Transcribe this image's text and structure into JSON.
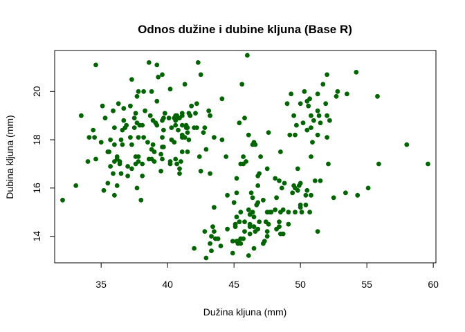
{
  "chart_data": {
    "type": "scatter",
    "title": "Odnos dužine i dubine kljuna (Base R)",
    "xlabel": "Dužina kljuna (mm)",
    "ylabel": "Dubina kljuna (mm)",
    "xlim": [
      31.5,
      60.2
    ],
    "ylim": [
      12.9,
      21.7
    ],
    "x_ticks": [
      35,
      40,
      45,
      50,
      55,
      60
    ],
    "y_ticks": [
      14,
      16,
      18,
      20
    ],
    "grid": false,
    "legend": "none",
    "point_color": "#006400",
    "points": [
      [
        32.1,
        15.5
      ],
      [
        33.1,
        16.1
      ],
      [
        33.5,
        19.0
      ],
      [
        34.0,
        17.1
      ],
      [
        34.1,
        18.1
      ],
      [
        34.4,
        18.4
      ],
      [
        34.5,
        18.1
      ],
      [
        34.6,
        21.1
      ],
      [
        34.6,
        17.2
      ],
      [
        35.0,
        17.9
      ],
      [
        35.1,
        19.4
      ],
      [
        35.2,
        15.9
      ],
      [
        35.3,
        18.9
      ],
      [
        35.5,
        16.2
      ],
      [
        35.5,
        17.5
      ],
      [
        35.6,
        17.5
      ],
      [
        35.7,
        16.9
      ],
      [
        35.7,
        18.0
      ],
      [
        35.9,
        16.6
      ],
      [
        35.9,
        19.2
      ],
      [
        36.0,
        15.7
      ],
      [
        36.0,
        17.1
      ],
      [
        36.0,
        17.8
      ],
      [
        36.0,
        18.5
      ],
      [
        36.2,
        16.1
      ],
      [
        36.2,
        17.2
      ],
      [
        36.2,
        17.3
      ],
      [
        36.3,
        19.5
      ],
      [
        36.4,
        17.0
      ],
      [
        36.4,
        17.1
      ],
      [
        36.5,
        16.6
      ],
      [
        36.5,
        18.0
      ],
      [
        36.6,
        17.8
      ],
      [
        36.6,
        18.4
      ],
      [
        36.7,
        18.8
      ],
      [
        36.7,
        19.3
      ],
      [
        36.8,
        18.5
      ],
      [
        36.9,
        18.6
      ],
      [
        37.0,
        16.5
      ],
      [
        37.0,
        16.9
      ],
      [
        37.2,
        18.1
      ],
      [
        37.2,
        19.4
      ],
      [
        37.3,
        16.8
      ],
      [
        37.3,
        17.8
      ],
      [
        37.3,
        20.5
      ],
      [
        37.5,
        18.5
      ],
      [
        37.5,
        18.9
      ],
      [
        37.6,
        17.0
      ],
      [
        37.6,
        17.3
      ],
      [
        37.6,
        19.1
      ],
      [
        37.7,
        16.0
      ],
      [
        37.7,
        18.7
      ],
      [
        37.7,
        19.8
      ],
      [
        37.8,
        17.1
      ],
      [
        37.8,
        17.3
      ],
      [
        37.8,
        18.1
      ],
      [
        37.8,
        20.0
      ],
      [
        37.9,
        18.6
      ],
      [
        38.0,
        15.5
      ],
      [
        38.1,
        16.5
      ],
      [
        38.1,
        17.0
      ],
      [
        38.1,
        18.6
      ],
      [
        38.2,
        18.1
      ],
      [
        38.2,
        20.0
      ],
      [
        38.3,
        19.2
      ],
      [
        38.5,
        17.9
      ],
      [
        38.6,
        17.2
      ],
      [
        38.6,
        21.2
      ],
      [
        38.7,
        19.0
      ],
      [
        38.8,
        17.2
      ],
      [
        38.8,
        17.6
      ],
      [
        38.8,
        20.0
      ],
      [
        38.9,
        17.8
      ],
      [
        38.9,
        18.8
      ],
      [
        39.0,
        17.1
      ],
      [
        39.0,
        17.5
      ],
      [
        39.1,
        18.7
      ],
      [
        39.2,
        18.6
      ],
      [
        39.2,
        19.6
      ],
      [
        39.2,
        21.1
      ],
      [
        39.3,
        20.6
      ],
      [
        39.5,
        16.7
      ],
      [
        39.5,
        17.4
      ],
      [
        39.6,
        17.2
      ],
      [
        39.6,
        17.7
      ],
      [
        39.6,
        18.1
      ],
      [
        39.6,
        18.8
      ],
      [
        39.6,
        20.7
      ],
      [
        39.7,
        17.7
      ],
      [
        39.7,
        18.4
      ],
      [
        39.7,
        18.9
      ],
      [
        39.8,
        19.1
      ],
      [
        40.1,
        18.9
      ],
      [
        40.2,
        17.0
      ],
      [
        40.2,
        17.1
      ],
      [
        40.2,
        20.1
      ],
      [
        40.3,
        18.0
      ],
      [
        40.3,
        18.5
      ],
      [
        40.5,
        17.9
      ],
      [
        40.5,
        18.9
      ],
      [
        40.6,
        17.2
      ],
      [
        40.6,
        18.6
      ],
      [
        40.6,
        18.8
      ],
      [
        40.6,
        19.0
      ],
      [
        40.7,
        17.0
      ],
      [
        40.7,
        19.0
      ],
      [
        40.8,
        18.4
      ],
      [
        40.8,
        18.9
      ],
      [
        40.9,
        16.6
      ],
      [
        40.9,
        16.8
      ],
      [
        40.9,
        18.9
      ],
      [
        41.0,
        17.1
      ],
      [
        41.1,
        17.5
      ],
      [
        41.1,
        18.1
      ],
      [
        41.1,
        18.2
      ],
      [
        41.1,
        19.0
      ],
      [
        41.1,
        19.1
      ],
      [
        41.1,
        18.6
      ],
      [
        41.3,
        18.1
      ],
      [
        41.3,
        20.3
      ],
      [
        41.4,
        18.5
      ],
      [
        41.4,
        18.6
      ],
      [
        41.5,
        17.5
      ],
      [
        41.5,
        18.3
      ],
      [
        41.5,
        18.5
      ],
      [
        41.6,
        18.0
      ],
      [
        41.6,
        19.1
      ],
      [
        41.7,
        19.0
      ],
      [
        41.8,
        19.4
      ],
      [
        42.0,
        13.5
      ],
      [
        42.0,
        18.5
      ],
      [
        42.1,
        19.1
      ],
      [
        42.2,
        18.5
      ],
      [
        42.2,
        19.5
      ],
      [
        42.3,
        21.2
      ],
      [
        42.4,
        17.3
      ],
      [
        42.5,
        16.7
      ],
      [
        42.5,
        20.7
      ],
      [
        42.7,
        18.3
      ],
      [
        42.8,
        14.2
      ],
      [
        42.8,
        18.5
      ],
      [
        42.9,
        13.1
      ],
      [
        42.9,
        17.6
      ],
      [
        43.1,
        19.2
      ],
      [
        43.2,
        13.7
      ],
      [
        43.2,
        16.6
      ],
      [
        43.2,
        19.0
      ],
      [
        43.3,
        13.4
      ],
      [
        43.3,
        14.0
      ],
      [
        43.4,
        14.4
      ],
      [
        43.5,
        14.2
      ],
      [
        43.5,
        15.2
      ],
      [
        43.5,
        18.1
      ],
      [
        43.6,
        13.9
      ],
      [
        43.8,
        13.9
      ],
      [
        44.0,
        13.6
      ],
      [
        44.1,
        18.0
      ],
      [
        44.1,
        19.7
      ],
      [
        44.4,
        17.3
      ],
      [
        44.5,
        14.3
      ],
      [
        44.5,
        15.7
      ],
      [
        44.9,
        13.3
      ],
      [
        44.9,
        13.8
      ],
      [
        45.0,
        15.4
      ],
      [
        45.1,
        14.4
      ],
      [
        45.1,
        14.5
      ],
      [
        45.2,
        13.8
      ],
      [
        45.2,
        14.8
      ],
      [
        45.2,
        15.8
      ],
      [
        45.2,
        16.4
      ],
      [
        45.3,
        13.7
      ],
      [
        45.3,
        13.8
      ],
      [
        45.4,
        14.6
      ],
      [
        45.4,
        18.7
      ],
      [
        45.5,
        13.7
      ],
      [
        45.5,
        13.9
      ],
      [
        45.5,
        15.0
      ],
      [
        45.5,
        17.0
      ],
      [
        45.6,
        20.3
      ],
      [
        45.7,
        13.9
      ],
      [
        45.7,
        17.0
      ],
      [
        45.7,
        17.3
      ],
      [
        45.8,
        14.2
      ],
      [
        45.8,
        14.6
      ],
      [
        45.8,
        18.9
      ],
      [
        45.9,
        17.1
      ],
      [
        46.0,
        21.5
      ],
      [
        46.1,
        13.2
      ],
      [
        46.1,
        15.1
      ],
      [
        46.1,
        18.2
      ],
      [
        46.2,
        14.1
      ],
      [
        46.2,
        14.4
      ],
      [
        46.2,
        14.5
      ],
      [
        46.2,
        14.9
      ],
      [
        46.3,
        15.8
      ],
      [
        46.4,
        15.0
      ],
      [
        46.4,
        15.6
      ],
      [
        46.4,
        17.8
      ],
      [
        46.5,
        13.5
      ],
      [
        46.5,
        14.4
      ],
      [
        46.5,
        14.8
      ],
      [
        46.5,
        17.9
      ],
      [
        46.6,
        14.2
      ],
      [
        46.6,
        17.8
      ],
      [
        46.7,
        15.3
      ],
      [
        46.8,
        14.3
      ],
      [
        46.8,
        15.4
      ],
      [
        46.8,
        16.1
      ],
      [
        46.8,
        16.5
      ],
      [
        46.9,
        14.6
      ],
      [
        46.9,
        16.6
      ],
      [
        47.0,
        17.3
      ],
      [
        47.2,
        13.7
      ],
      [
        47.2,
        15.5
      ],
      [
        47.3,
        13.8
      ],
      [
        47.4,
        14.6
      ],
      [
        47.5,
        14.0
      ],
      [
        47.5,
        14.2
      ],
      [
        47.5,
        15.0
      ],
      [
        47.5,
        16.8
      ],
      [
        47.6,
        14.5
      ],
      [
        47.6,
        18.3
      ],
      [
        47.7,
        15.0
      ],
      [
        47.8,
        15.0
      ],
      [
        48.1,
        15.1
      ],
      [
        48.1,
        16.4
      ],
      [
        48.2,
        14.3
      ],
      [
        48.2,
        15.6
      ],
      [
        48.4,
        14.4
      ],
      [
        48.4,
        14.6
      ],
      [
        48.4,
        16.3
      ],
      [
        48.5,
        14.1
      ],
      [
        48.5,
        15.0
      ],
      [
        48.5,
        17.5
      ],
      [
        48.6,
        16.0
      ],
      [
        48.7,
        14.1
      ],
      [
        48.7,
        15.1
      ],
      [
        48.8,
        16.2
      ],
      [
        49.0,
        19.5
      ],
      [
        49.1,
        14.5
      ],
      [
        49.1,
        15.0
      ],
      [
        49.2,
        18.2
      ],
      [
        49.3,
        19.9
      ],
      [
        49.4,
        15.8
      ],
      [
        49.5,
        16.1
      ],
      [
        49.5,
        19.0
      ],
      [
        49.6,
        15.0
      ],
      [
        49.6,
        16.0
      ],
      [
        49.6,
        18.2
      ],
      [
        49.7,
        18.6
      ],
      [
        49.8,
        15.9
      ],
      [
        49.8,
        16.8
      ],
      [
        49.9,
        16.1
      ],
      [
        50.0,
        15.2
      ],
      [
        50.0,
        15.3
      ],
      [
        50.0,
        16.2
      ],
      [
        50.0,
        19.5
      ],
      [
        50.1,
        15.0
      ],
      [
        50.2,
        18.7
      ],
      [
        50.3,
        20.0
      ],
      [
        50.4,
        15.3
      ],
      [
        50.4,
        15.7
      ],
      [
        50.5,
        15.9
      ],
      [
        50.5,
        18.4
      ],
      [
        50.5,
        19.6
      ],
      [
        50.6,
        19.4
      ],
      [
        50.7,
        15.0
      ],
      [
        50.7,
        19.7
      ],
      [
        50.8,
        15.7
      ],
      [
        50.8,
        17.3
      ],
      [
        50.8,
        18.5
      ],
      [
        50.8,
        19.0
      ],
      [
        50.9,
        17.9
      ],
      [
        51.0,
        18.8
      ],
      [
        51.1,
        16.3
      ],
      [
        51.3,
        14.2
      ],
      [
        51.3,
        18.2
      ],
      [
        51.3,
        19.2
      ],
      [
        51.3,
        19.9
      ],
      [
        51.4,
        19.0
      ],
      [
        51.5,
        16.3
      ],
      [
        51.5,
        18.7
      ],
      [
        51.7,
        20.3
      ],
      [
        51.9,
        19.5
      ],
      [
        52.0,
        18.1
      ],
      [
        52.0,
        19.0
      ],
      [
        52.0,
        20.7
      ],
      [
        52.1,
        17.0
      ],
      [
        52.2,
        18.8
      ],
      [
        52.5,
        15.6
      ],
      [
        52.7,
        19.8
      ],
      [
        52.8,
        20.0
      ],
      [
        53.4,
        15.8
      ],
      [
        53.5,
        19.9
      ],
      [
        54.2,
        20.8
      ],
      [
        54.3,
        15.7
      ],
      [
        55.1,
        16.0
      ],
      [
        55.8,
        19.8
      ],
      [
        55.9,
        17.0
      ],
      [
        58.0,
        17.8
      ],
      [
        59.6,
        17.0
      ]
    ]
  }
}
